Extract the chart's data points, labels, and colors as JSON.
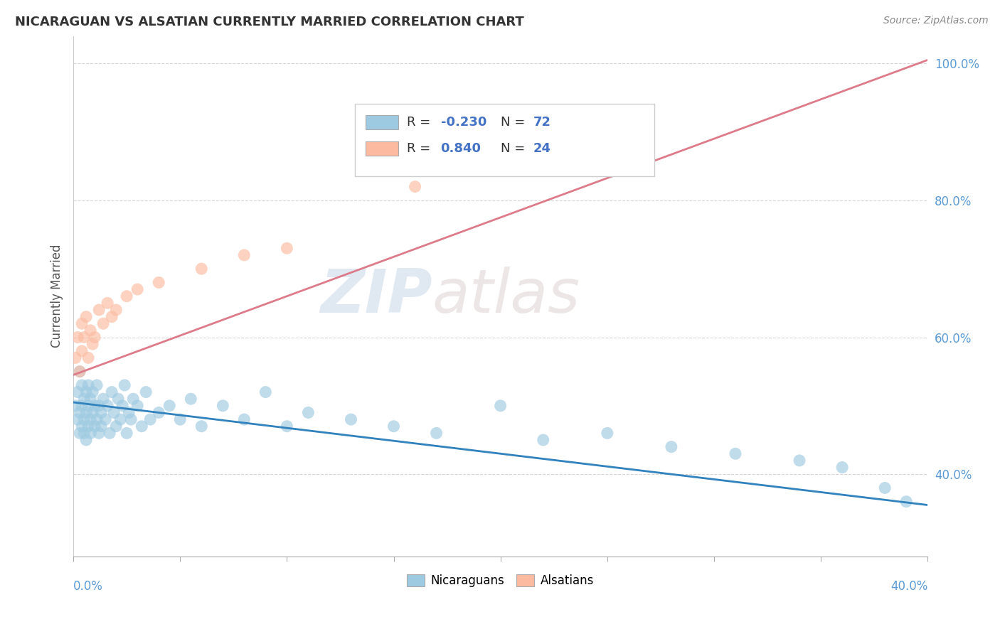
{
  "title": "NICARAGUAN VS ALSATIAN CURRENTLY MARRIED CORRELATION CHART",
  "source": "Source: ZipAtlas.com",
  "ylabel": "Currently Married",
  "xlim": [
    0.0,
    0.4
  ],
  "ylim": [
    0.28,
    1.04
  ],
  "yticks": [
    0.4,
    0.6,
    0.8,
    1.0
  ],
  "ytick_labels": [
    "40.0%",
    "60.0%",
    "80.0%",
    "100.0%"
  ],
  "watermark_zip": "ZIP",
  "watermark_atlas": "atlas",
  "nicaraguan_color": "#9ecae1",
  "alsatian_color": "#fcbba1",
  "nicaraguan_line_color": "#3182bd",
  "alsatian_line_color": "#de7b8a",
  "legend_color": "#4472c4",
  "legend_r_nicaraguan": "-0.230",
  "legend_n_nicaraguan": "72",
  "legend_r_alsatian": "0.840",
  "legend_n_alsatian": "24",
  "nic_line_x0": 0.0,
  "nic_line_x1": 0.4,
  "nic_line_y0": 0.505,
  "nic_line_y1": 0.355,
  "als_line_x0": 0.0,
  "als_line_x1": 0.4,
  "als_line_y0": 0.545,
  "als_line_y1": 1.005,
  "nic_x": [
    0.001,
    0.002,
    0.002,
    0.003,
    0.003,
    0.003,
    0.004,
    0.004,
    0.004,
    0.005,
    0.005,
    0.005,
    0.006,
    0.006,
    0.006,
    0.007,
    0.007,
    0.007,
    0.008,
    0.008,
    0.008,
    0.009,
    0.009,
    0.01,
    0.01,
    0.011,
    0.011,
    0.012,
    0.012,
    0.013,
    0.013,
    0.014,
    0.015,
    0.016,
    0.017,
    0.018,
    0.019,
    0.02,
    0.021,
    0.022,
    0.023,
    0.024,
    0.025,
    0.026,
    0.027,
    0.028,
    0.03,
    0.032,
    0.034,
    0.036,
    0.04,
    0.045,
    0.05,
    0.055,
    0.06,
    0.07,
    0.08,
    0.09,
    0.1,
    0.11,
    0.13,
    0.15,
    0.17,
    0.2,
    0.22,
    0.25,
    0.28,
    0.31,
    0.34,
    0.36,
    0.38,
    0.39
  ],
  "nic_y": [
    0.5,
    0.52,
    0.48,
    0.55,
    0.46,
    0.49,
    0.53,
    0.47,
    0.5,
    0.51,
    0.46,
    0.48,
    0.52,
    0.45,
    0.49,
    0.5,
    0.47,
    0.53,
    0.48,
    0.51,
    0.46,
    0.49,
    0.52,
    0.47,
    0.5,
    0.48,
    0.53,
    0.46,
    0.5,
    0.49,
    0.47,
    0.51,
    0.48,
    0.5,
    0.46,
    0.52,
    0.49,
    0.47,
    0.51,
    0.48,
    0.5,
    0.53,
    0.46,
    0.49,
    0.48,
    0.51,
    0.5,
    0.47,
    0.52,
    0.48,
    0.49,
    0.5,
    0.48,
    0.51,
    0.47,
    0.5,
    0.48,
    0.52,
    0.47,
    0.49,
    0.48,
    0.47,
    0.46,
    0.5,
    0.45,
    0.46,
    0.44,
    0.43,
    0.42,
    0.41,
    0.38,
    0.36
  ],
  "als_x": [
    0.001,
    0.002,
    0.003,
    0.004,
    0.004,
    0.005,
    0.006,
    0.007,
    0.008,
    0.009,
    0.01,
    0.012,
    0.014,
    0.016,
    0.018,
    0.02,
    0.025,
    0.03,
    0.04,
    0.06,
    0.08,
    0.1,
    0.16,
    0.22
  ],
  "als_y": [
    0.57,
    0.6,
    0.55,
    0.62,
    0.58,
    0.6,
    0.63,
    0.57,
    0.61,
    0.59,
    0.6,
    0.64,
    0.62,
    0.65,
    0.63,
    0.64,
    0.66,
    0.67,
    0.68,
    0.7,
    0.72,
    0.73,
    0.82,
    0.91
  ]
}
